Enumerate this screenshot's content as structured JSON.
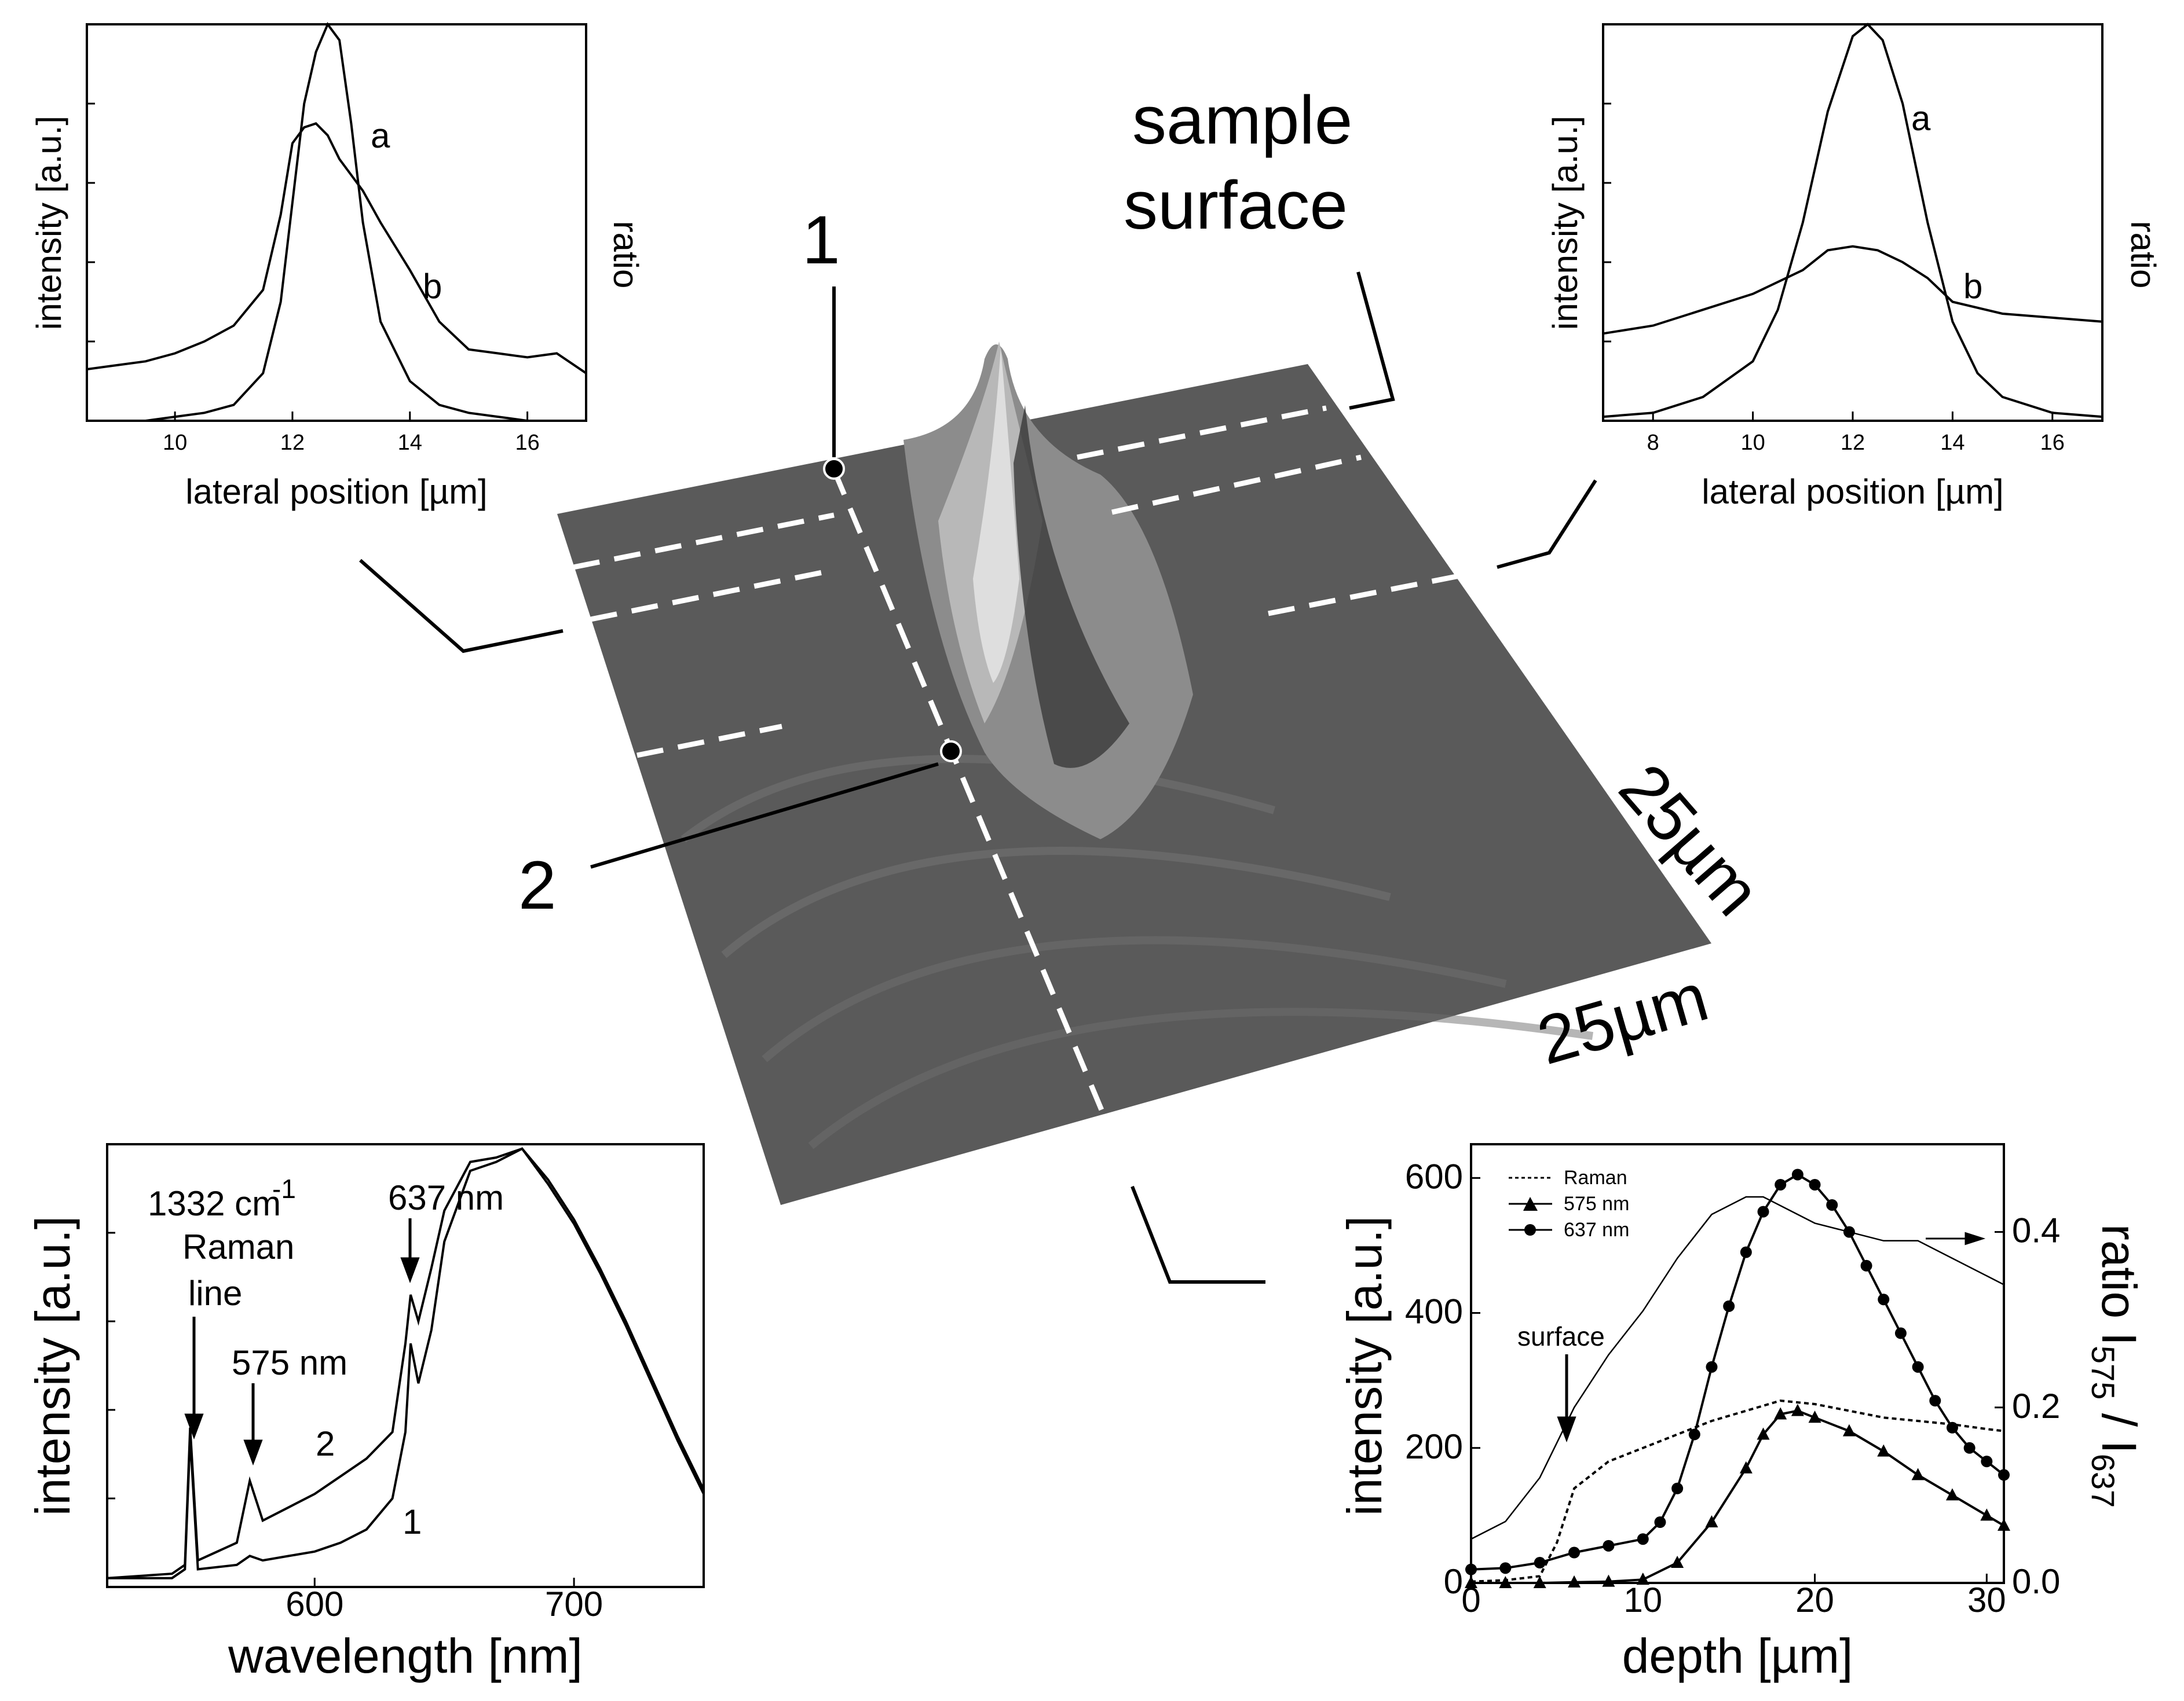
{
  "labels": {
    "sample_surface_1": "sample",
    "sample_surface_2": "surface",
    "point_1": "1",
    "point_2": "2",
    "scale_a": "25µm",
    "scale_b": "25µm"
  },
  "colors": {
    "surface": "#5a5a5a",
    "dash": "#ffffff",
    "ink": "#000000"
  },
  "chart_data": [
    {
      "id": "top-left",
      "type": "line",
      "xlabel": "lateral position [µm]",
      "ylabel": "intensity [a.u.]",
      "ylabel_right": "ratio",
      "xlim": [
        8.5,
        17
      ],
      "ylim": [
        0,
        1
      ],
      "xticks": [
        10,
        12,
        14,
        16
      ],
      "series": [
        {
          "name": "a",
          "x": [
            8.5,
            9,
            9.5,
            10,
            10.5,
            11,
            11.5,
            11.8,
            12,
            12.2,
            12.4,
            12.6,
            12.8,
            13,
            13.2,
            13.5,
            14,
            14.5,
            15,
            15.5,
            16,
            16.5,
            17
          ],
          "y": [
            0,
            0,
            0,
            0.01,
            0.02,
            0.04,
            0.12,
            0.3,
            0.55,
            0.8,
            0.93,
            1.0,
            0.96,
            0.75,
            0.5,
            0.25,
            0.1,
            0.04,
            0.02,
            0.01,
            0,
            0,
            0
          ]
        },
        {
          "name": "b",
          "x": [
            8.5,
            9,
            9.5,
            10,
            10.5,
            11,
            11.5,
            11.8,
            12,
            12.2,
            12.4,
            12.6,
            12.8,
            13,
            13.2,
            13.5,
            14,
            14.5,
            15,
            15.5,
            16,
            16.5,
            17
          ],
          "y": [
            0.13,
            0.14,
            0.15,
            0.17,
            0.2,
            0.24,
            0.33,
            0.52,
            0.7,
            0.74,
            0.75,
            0.72,
            0.66,
            0.62,
            0.58,
            0.5,
            0.38,
            0.25,
            0.18,
            0.17,
            0.16,
            0.17,
            0.12
          ]
        }
      ],
      "curve_labels": [
        "a",
        "b"
      ]
    },
    {
      "id": "top-right",
      "type": "line",
      "xlabel": "lateral position [µm]",
      "ylabel": "intensity [a.u.]",
      "ylabel_right": "ratio",
      "xlim": [
        7,
        17
      ],
      "ylim": [
        0,
        1
      ],
      "xticks": [
        8,
        10,
        12,
        14,
        16
      ],
      "series": [
        {
          "name": "a",
          "x": [
            7,
            8,
            9,
            10,
            10.5,
            11,
            11.5,
            12,
            12.3,
            12.6,
            13,
            13.5,
            14,
            14.5,
            15,
            16,
            17
          ],
          "y": [
            0.01,
            0.02,
            0.06,
            0.15,
            0.28,
            0.5,
            0.78,
            0.97,
            1.0,
            0.96,
            0.8,
            0.5,
            0.25,
            0.12,
            0.06,
            0.02,
            0.01
          ]
        },
        {
          "name": "b",
          "x": [
            7,
            8,
            9,
            10,
            11,
            11.5,
            12,
            12.5,
            13,
            13.5,
            14,
            15,
            16,
            17
          ],
          "y": [
            0.22,
            0.24,
            0.28,
            0.32,
            0.38,
            0.43,
            0.44,
            0.43,
            0.4,
            0.36,
            0.3,
            0.27,
            0.26,
            0.25
          ]
        }
      ],
      "curve_labels": [
        "a",
        "b"
      ]
    },
    {
      "id": "bottom-left",
      "type": "line",
      "xlabel": "wavelength [nm]",
      "ylabel": "intensity [a.u.]",
      "xlim": [
        520,
        750
      ],
      "ylim": [
        0,
        1
      ],
      "xticks": [
        600,
        700
      ],
      "annotations": [
        "1332 cm",
        "-1",
        "Raman",
        "line",
        "575 nm",
        "637 nm"
      ],
      "curve_labels": [
        "2",
        "1"
      ],
      "series": [
        {
          "name": "2",
          "x": [
            520,
            545,
            550,
            552,
            555,
            570,
            575,
            580,
            590,
            600,
            610,
            620,
            630,
            635,
            637,
            640,
            645,
            650,
            660,
            670,
            680,
            690,
            700,
            710,
            720,
            730,
            740,
            750
          ],
          "y": [
            0.02,
            0.03,
            0.05,
            0.36,
            0.06,
            0.1,
            0.24,
            0.15,
            0.18,
            0.21,
            0.25,
            0.29,
            0.35,
            0.55,
            0.66,
            0.6,
            0.72,
            0.85,
            0.96,
            0.97,
            0.99,
            0.92,
            0.83,
            0.72,
            0.6,
            0.47,
            0.34,
            0.22
          ]
        },
        {
          "name": "1",
          "x": [
            520,
            545,
            550,
            552,
            555,
            570,
            575,
            580,
            590,
            600,
            610,
            620,
            630,
            635,
            637,
            640,
            645,
            650,
            660,
            670,
            680,
            690,
            700,
            710,
            720,
            730,
            740,
            750
          ],
          "y": [
            0.02,
            0.02,
            0.04,
            0.34,
            0.04,
            0.05,
            0.07,
            0.06,
            0.07,
            0.08,
            0.1,
            0.13,
            0.2,
            0.35,
            0.55,
            0.46,
            0.58,
            0.78,
            0.94,
            0.96,
            0.99,
            0.91,
            0.82,
            0.71,
            0.59,
            0.46,
            0.33,
            0.21
          ]
        }
      ]
    },
    {
      "id": "bottom-right",
      "type": "line",
      "xlabel": "depth [µm]",
      "ylabel": "intensity [a.u.]",
      "ylabel_right_main": "ratio I",
      "ylabel_right_sub1": "575",
      "ylabel_right_mid": " / I",
      "ylabel_right_sub2": "637",
      "xlim": [
        0,
        31
      ],
      "ylim": [
        0,
        650
      ],
      "y2lim": [
        0,
        0.5
      ],
      "xticks": [
        0,
        10,
        20,
        30
      ],
      "yticks": [
        0,
        200,
        400,
        600
      ],
      "y2ticks": [
        0.0,
        0.2,
        0.4
      ],
      "annotation": "surface",
      "legend": [
        "Raman",
        "575 nm",
        "637 nm"
      ],
      "series": [
        {
          "name": "Raman",
          "style": "dotted",
          "x": [
            0,
            2,
            4,
            5,
            6,
            8,
            10,
            12,
            14,
            16,
            18,
            20,
            22,
            24,
            26,
            28,
            30,
            31
          ],
          "y": [
            2,
            4,
            10,
            60,
            140,
            180,
            200,
            220,
            240,
            255,
            270,
            265,
            255,
            245,
            240,
            235,
            228,
            225
          ]
        },
        {
          "name": "575 nm",
          "marker": "triangle",
          "x": [
            0,
            2,
            4,
            6,
            8,
            10,
            12,
            14,
            16,
            17,
            18,
            19,
            20,
            22,
            24,
            26,
            28,
            30,
            31
          ],
          "y": [
            0,
            0,
            0,
            1,
            2,
            5,
            30,
            90,
            170,
            220,
            250,
            255,
            245,
            225,
            195,
            160,
            130,
            100,
            85
          ]
        },
        {
          "name": "637 nm",
          "marker": "circle",
          "x": [
            0,
            2,
            4,
            6,
            8,
            10,
            11,
            12,
            13,
            14,
            15,
            16,
            17,
            18,
            19,
            20,
            21,
            22,
            23,
            24,
            25,
            26,
            27,
            28,
            29,
            30,
            31
          ],
          "y": [
            20,
            22,
            30,
            45,
            55,
            65,
            90,
            140,
            220,
            320,
            410,
            490,
            550,
            590,
            605,
            590,
            560,
            520,
            470,
            420,
            370,
            320,
            270,
            230,
            200,
            180,
            160
          ]
        },
        {
          "name": "ratio",
          "axis": "right",
          "x": [
            0,
            2,
            4,
            6,
            8,
            10,
            12,
            14,
            16,
            17,
            18,
            20,
            22,
            24,
            26,
            28,
            30,
            31
          ],
          "y": [
            0.05,
            0.07,
            0.12,
            0.2,
            0.26,
            0.31,
            0.37,
            0.42,
            0.44,
            0.44,
            0.43,
            0.41,
            0.4,
            0.39,
            0.39,
            0.37,
            0.35,
            0.34
          ]
        }
      ]
    }
  ]
}
